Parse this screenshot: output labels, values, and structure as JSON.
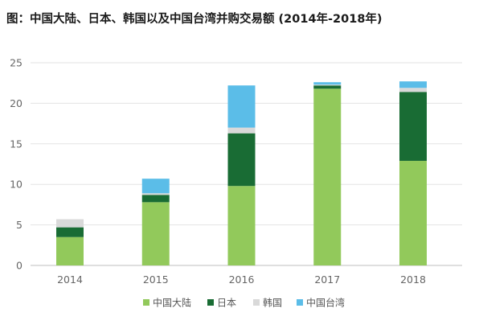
{
  "chart_data": {
    "type": "bar",
    "stacked": true,
    "title": "图：中国大陆、日本、韩国以及中国台湾并购交易额 (2014年-2018年)",
    "xlabel": "",
    "ylabel": "",
    "categories": [
      "2014",
      "2015",
      "2016",
      "2017",
      "2018"
    ],
    "ylim": [
      0,
      25
    ],
    "yticks": [
      "0",
      "5",
      "10",
      "15",
      "20",
      "25"
    ],
    "grid": true,
    "legend_position": "bottom",
    "series": [
      {
        "name": "中国大陆",
        "color": "#92c95b",
        "values": [
          3.5,
          7.8,
          9.8,
          21.8,
          12.9
        ]
      },
      {
        "name": "日本",
        "color": "#196c34",
        "values": [
          1.2,
          0.9,
          6.5,
          0.4,
          8.5
        ]
      },
      {
        "name": "韩国",
        "color": "#d9d9d9",
        "values": [
          1.0,
          0.2,
          0.7,
          0.1,
          0.5
        ]
      },
      {
        "name": "中国台湾",
        "color": "#5bbde8",
        "values": [
          0.0,
          1.8,
          5.2,
          0.3,
          0.8
        ]
      }
    ]
  }
}
